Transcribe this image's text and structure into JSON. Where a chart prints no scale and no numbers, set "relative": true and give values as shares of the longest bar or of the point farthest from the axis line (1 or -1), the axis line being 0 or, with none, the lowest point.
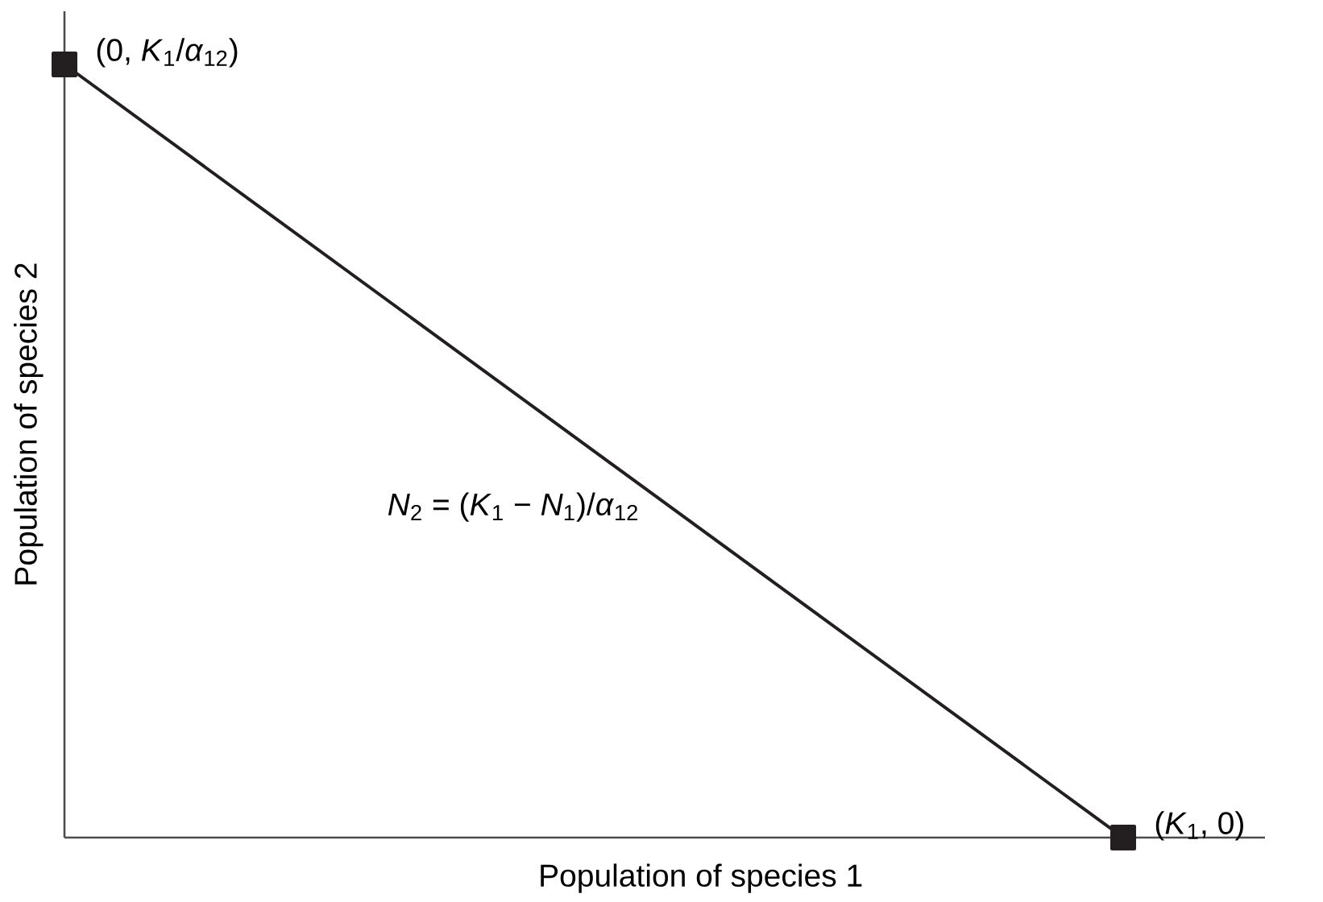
{
  "chart_data": {
    "type": "line",
    "xlabel": "Population of species 1",
    "ylabel": "Population of species 2",
    "categories": [
      null,
      null
    ],
    "relative": true,
    "series": [
      {
        "color": "#231f20",
        "values": [
          1,
          0
        ]
      }
    ],
    "marker": "square",
    "line_style": "solid",
    "annotations": [
      "(0, *K*$_{1}$/*α*$_{12}$)",
      "(*K*$_{1}$, 0)",
      "*N*$_{2}$ = (*K*$_{1}$ − *N*$_{1}$)/*α*$_{12}$"
    ]
  }
}
